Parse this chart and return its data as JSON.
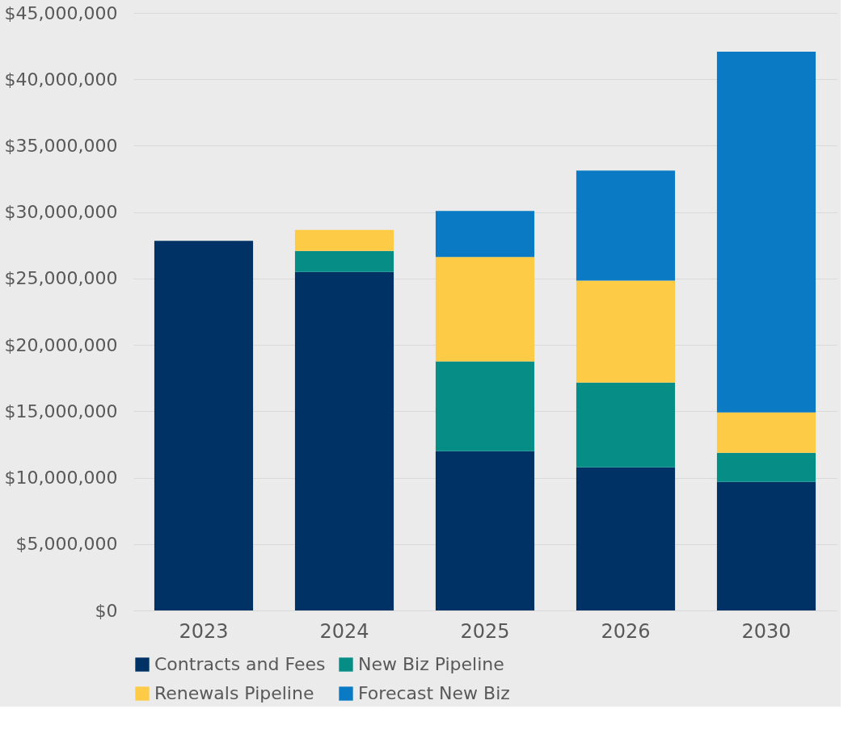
{
  "chart_data": {
    "type": "bar",
    "stacked": true,
    "categories": [
      "2023",
      "2024",
      "2025",
      "2026",
      "2030"
    ],
    "series": [
      {
        "name": "Contracts and Fees",
        "color": "#003265",
        "values": [
          27830000,
          25500000,
          12000000,
          10780000,
          9680000
        ]
      },
      {
        "name": "New Biz Pipeline",
        "color": "#068d86",
        "values": [
          null,
          1580000,
          6760000,
          6390000,
          2190000
        ]
      },
      {
        "name": "Renewals Pipeline",
        "color": "#fecb47",
        "values": [
          null,
          1580000,
          7860000,
          7670000,
          3050000
        ]
      },
      {
        "name": "Forecast New Biz",
        "color": "#0a7ac4",
        "values": [
          null,
          null,
          3470000,
          8280000,
          27160000
        ]
      }
    ],
    "ylim": [
      0,
      45000000
    ],
    "yticks": [
      {
        "value": 0,
        "label": "$0"
      },
      {
        "value": 5000000,
        "label": "$5,000,000"
      },
      {
        "value": 10000000,
        "label": "$10,000,000"
      },
      {
        "value": 15000000,
        "label": "$15,000,000"
      },
      {
        "value": 20000000,
        "label": "$20,000,000"
      },
      {
        "value": 25000000,
        "label": "$25,000,000"
      },
      {
        "value": 30000000,
        "label": "$30,000,000"
      },
      {
        "value": 35000000,
        "label": "$35,000,000"
      },
      {
        "value": 40000000,
        "label": "$40,000,000"
      },
      {
        "value": 45000000,
        "label": "$45,000,000"
      }
    ],
    "grid": "y",
    "legend": "bottom"
  }
}
